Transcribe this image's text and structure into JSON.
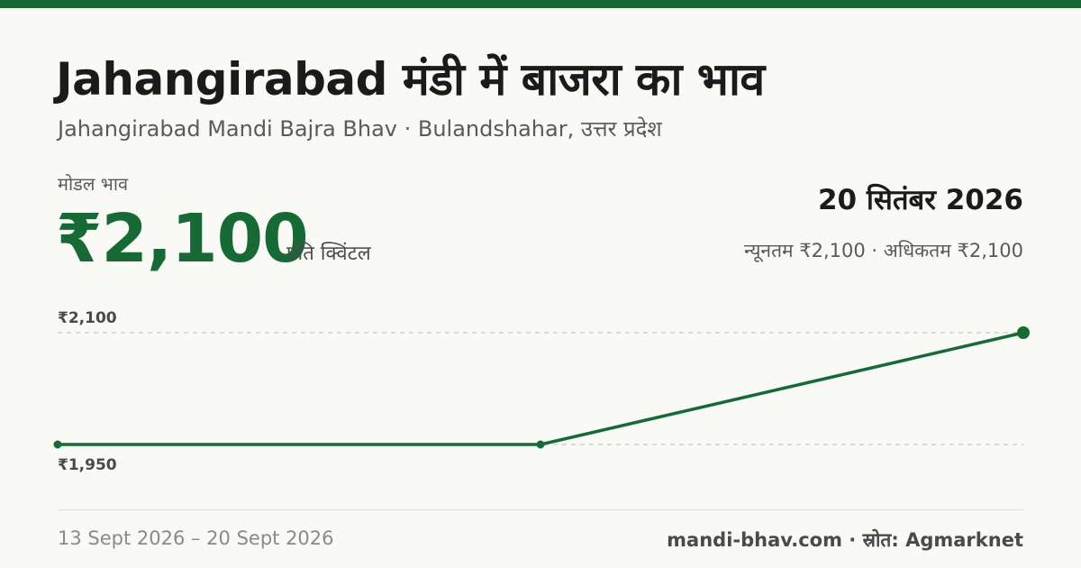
{
  "header": {
    "title": "Jahangirabad मंडी में बाजरा का भाव",
    "subtitle": "Jahangirabad Mandi Bajra Bhav · Bulandshahar, उत्तर प्रदेश"
  },
  "price": {
    "modal_label": "मोडल भाव",
    "modal_value": "₹2,100",
    "unit": "प्रति क्विंटल",
    "date": "20 सितंबर 2026",
    "min_max": "न्यूनतम ₹2,100 · अधिकतम ₹2,100"
  },
  "footer": {
    "date_range": "13 Sept 2026 – 20 Sept 2026",
    "source": "mandi-bhav.com · स्रोत: Agmarknet"
  },
  "colors": {
    "accent": "#176a36",
    "gridline": "#c8c8c0"
  },
  "chart_data": {
    "type": "line",
    "x": [
      "13 Sept 2026",
      "",
      "20 Sept 2026"
    ],
    "values": [
      1950,
      1950,
      2100
    ],
    "ylim": [
      1950,
      2100
    ],
    "ytick_labels": [
      "₹2,100",
      "₹1,950"
    ],
    "grid": true,
    "title": "",
    "xlabel": "",
    "ylabel": ""
  }
}
